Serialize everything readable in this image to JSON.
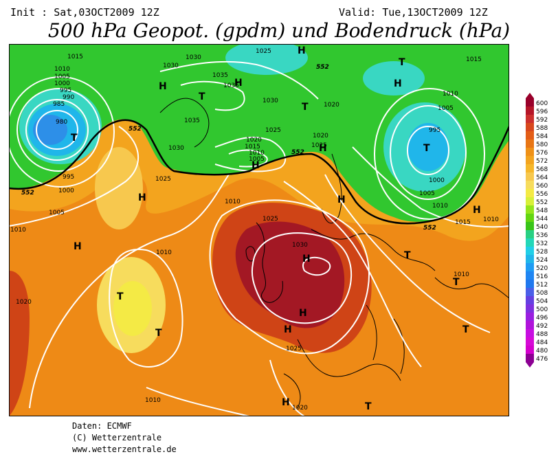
{
  "header": {
    "init": "Init : Sat,03OCT2009 12Z",
    "valid": "Valid: Tue,13OCT2009 12Z",
    "title": "500 hPa Geopot. (gpdm) und Bodendruck (hPa)"
  },
  "footer": {
    "line1": "Daten: ECMWF",
    "line2": "(C) Wetterzentrale",
    "line3": "www.wetterzentrale.de"
  },
  "colors": {
    "deep_low": "#2d8fe8",
    "low": "#39d7c2",
    "mid": "#31c72f",
    "ridge_edge": "#f6c23a",
    "warm": "#ee8a16",
    "hot": "#cf4416",
    "core": "#a31824"
  },
  "colorbar": {
    "values": [
      "600",
      "596",
      "592",
      "588",
      "584",
      "580",
      "576",
      "572",
      "568",
      "564",
      "560",
      "556",
      "552",
      "548",
      "544",
      "540",
      "536",
      "532",
      "528",
      "524",
      "520",
      "516",
      "512",
      "508",
      "504",
      "500",
      "496",
      "492",
      "488",
      "484",
      "480",
      "476"
    ],
    "colors": [
      "#99002a",
      "#b51528",
      "#cc2f2d",
      "#d8481d",
      "#e35d17",
      "#e87615",
      "#ef9117",
      "#f3a41e",
      "#f6b72a",
      "#f7c84e",
      "#f7dc5d",
      "#f4ea45",
      "#d8f039",
      "#95e51c",
      "#63d611",
      "#39c519",
      "#28d083",
      "#23d7b8",
      "#21cfe7",
      "#20b6ea",
      "#1f9cf4",
      "#1f86f3",
      "#2078ee",
      "#4a5fe8",
      "#6440e1",
      "#7e30df",
      "#9a1fe0",
      "#b013db",
      "#c70ee1",
      "#d60ad6",
      "#d400cd",
      "#8c0093"
    ]
  },
  "map_labels": {
    "pressure_centers": [
      {
        "sym": "T"
      },
      {
        "sym": "H"
      },
      {
        "sym": "H"
      },
      {
        "sym": "T"
      },
      {
        "sym": "T"
      },
      {
        "sym": "T"
      },
      {
        "sym": "H"
      },
      {
        "sym": "H"
      },
      {
        "sym": "H"
      },
      {
        "sym": "H"
      },
      {
        "sym": "T"
      },
      {
        "sym": "T"
      },
      {
        "sym": "H"
      },
      {
        "sym": "T"
      },
      {
        "sym": "H"
      },
      {
        "sym": "T"
      },
      {
        "sym": "H"
      },
      {
        "sym": "H"
      },
      {
        "sym": "T"
      },
      {
        "sym": "H"
      },
      {
        "sym": "T"
      },
      {
        "sym": "H"
      },
      {
        "sym": "H"
      },
      {
        "sym": "H"
      },
      {
        "sym": "T"
      }
    ],
    "isobar_values": [
      "1015",
      "1010",
      "1005",
      "1000",
      "995",
      "990",
      "985",
      "980",
      "995",
      "1000",
      "1005",
      "1010",
      "1025",
      "1030",
      "1030",
      "1035",
      "1035",
      "1030",
      "1020",
      "1025",
      "1035",
      "1030",
      "1020",
      "1025",
      "1015",
      "1010",
      "1005",
      "1020",
      "1025",
      "1010",
      "1025",
      "1030",
      "1010",
      "1020",
      "1025",
      "1010",
      "1020",
      "1015",
      "1010",
      "1005",
      "995",
      "1000",
      "1005",
      "1010",
      "1015",
      "1010",
      "1010"
    ],
    "contour_552": [
      "552",
      "552",
      "552",
      "552",
      "552"
    ]
  }
}
